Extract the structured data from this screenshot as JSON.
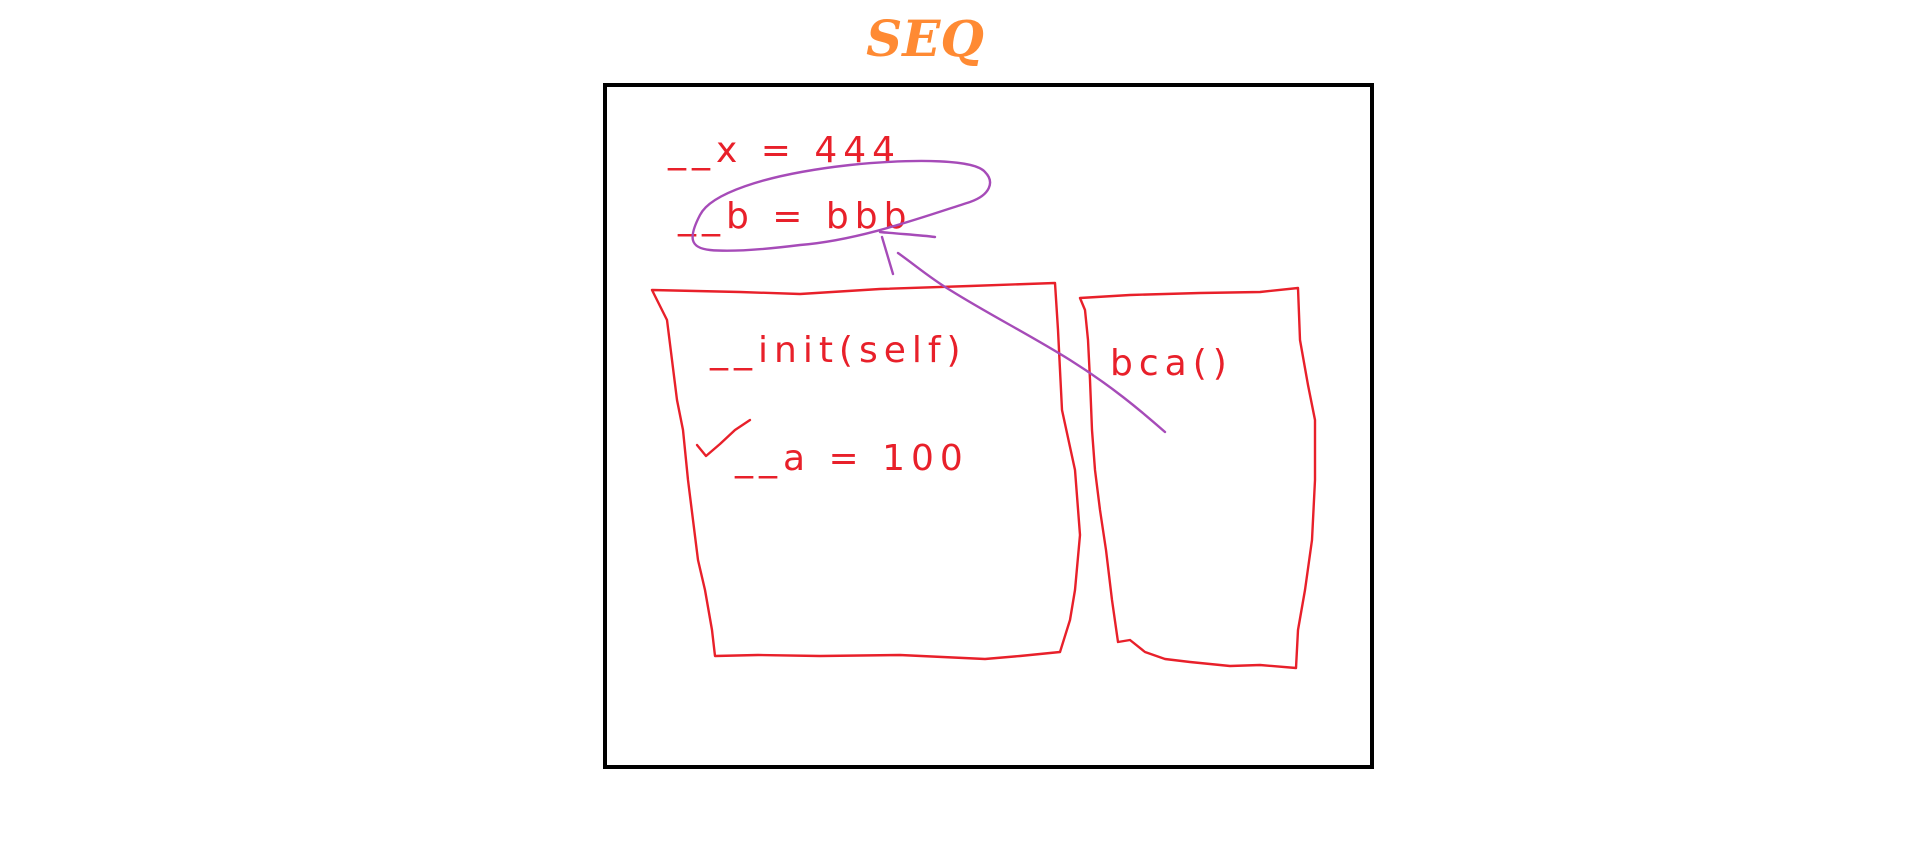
{
  "title": "SEQ",
  "colors": {
    "title": "#ff8a33",
    "frame": "#000000",
    "ink_red": "#e8202a",
    "ink_purple": "#a64bb8"
  },
  "annotations": {
    "class_attr_x": "__x = 444",
    "class_attr_b": "__b = bbb",
    "init_method": "__init(self)",
    "instance_attr": "__a = 100",
    "other_call": "bca()"
  }
}
